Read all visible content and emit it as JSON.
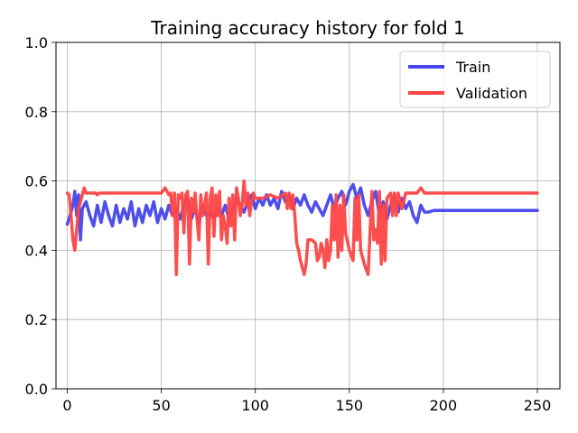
{
  "chart_data": {
    "type": "line",
    "title": "Training accuracy history for fold 1",
    "xlabel": "",
    "ylabel": "",
    "xlim": [
      -6,
      262
    ],
    "ylim": [
      0,
      1
    ],
    "xticks": [
      0,
      50,
      100,
      150,
      200,
      250
    ],
    "yticks": [
      0.0,
      0.2,
      0.4,
      0.6,
      0.8,
      1.0
    ],
    "xtick_labels": [
      "0",
      "50",
      "100",
      "150",
      "200",
      "250"
    ],
    "ytick_labels": [
      "0.0",
      "0.2",
      "0.4",
      "0.6",
      "0.8",
      "1.0"
    ],
    "grid": true,
    "legend_position": "upper right",
    "series": [
      {
        "name": "Train",
        "color": "#4444ee",
        "keypoints": [
          [
            0,
            0.475
          ],
          [
            2,
            0.51
          ],
          [
            3,
            0.53
          ],
          [
            4,
            0.57
          ],
          [
            5,
            0.5
          ],
          [
            6,
            0.56
          ],
          [
            7,
            0.43
          ],
          [
            8,
            0.52
          ],
          [
            10,
            0.54
          ],
          [
            12,
            0.5
          ],
          [
            14,
            0.47
          ],
          [
            16,
            0.53
          ],
          [
            18,
            0.48
          ],
          [
            20,
            0.54
          ],
          [
            22,
            0.5
          ],
          [
            24,
            0.47
          ],
          [
            26,
            0.53
          ],
          [
            28,
            0.48
          ],
          [
            30,
            0.52
          ],
          [
            32,
            0.49
          ],
          [
            34,
            0.54
          ],
          [
            36,
            0.47
          ],
          [
            38,
            0.52
          ],
          [
            40,
            0.48
          ],
          [
            42,
            0.53
          ],
          [
            44,
            0.5
          ],
          [
            46,
            0.54
          ],
          [
            48,
            0.48
          ],
          [
            50,
            0.52
          ],
          [
            52,
            0.49
          ],
          [
            54,
            0.53
          ],
          [
            56,
            0.5
          ],
          [
            58,
            0.52
          ],
          [
            60,
            0.49
          ],
          [
            62,
            0.53
          ],
          [
            64,
            0.55
          ],
          [
            66,
            0.49
          ],
          [
            68,
            0.52
          ],
          [
            70,
            0.48
          ],
          [
            72,
            0.53
          ],
          [
            74,
            0.5
          ],
          [
            76,
            0.51
          ],
          [
            78,
            0.49
          ],
          [
            80,
            0.52
          ],
          [
            82,
            0.5
          ],
          [
            84,
            0.53
          ],
          [
            86,
            0.49
          ],
          [
            88,
            0.52
          ],
          [
            90,
            0.55
          ],
          [
            92,
            0.53
          ],
          [
            94,
            0.51
          ],
          [
            96,
            0.54
          ],
          [
            98,
            0.56
          ],
          [
            100,
            0.52
          ],
          [
            102,
            0.55
          ],
          [
            104,
            0.53
          ],
          [
            106,
            0.56
          ],
          [
            108,
            0.53
          ],
          [
            110,
            0.55
          ],
          [
            112,
            0.52
          ],
          [
            114,
            0.57
          ],
          [
            116,
            0.54
          ],
          [
            118,
            0.56
          ],
          [
            120,
            0.52
          ],
          [
            122,
            0.55
          ],
          [
            124,
            0.53
          ],
          [
            126,
            0.56
          ],
          [
            128,
            0.53
          ],
          [
            130,
            0.51
          ],
          [
            132,
            0.54
          ],
          [
            134,
            0.52
          ],
          [
            136,
            0.5
          ],
          [
            138,
            0.53
          ],
          [
            140,
            0.56
          ],
          [
            142,
            0.52
          ],
          [
            144,
            0.55
          ],
          [
            146,
            0.57
          ],
          [
            148,
            0.53
          ],
          [
            150,
            0.57
          ],
          [
            152,
            0.59
          ],
          [
            154,
            0.55
          ],
          [
            156,
            0.58
          ],
          [
            158,
            0.53
          ],
          [
            160,
            0.5
          ],
          [
            162,
            0.54
          ],
          [
            164,
            0.57
          ],
          [
            166,
            0.5
          ],
          [
            168,
            0.54
          ],
          [
            170,
            0.49
          ],
          [
            172,
            0.53
          ],
          [
            174,
            0.56
          ],
          [
            176,
            0.51
          ],
          [
            178,
            0.55
          ],
          [
            180,
            0.52
          ],
          [
            182,
            0.54
          ],
          [
            184,
            0.5
          ],
          [
            186,
            0.48
          ],
          [
            188,
            0.53
          ],
          [
            190,
            0.51
          ],
          [
            192,
            0.51
          ],
          [
            195,
            0.515
          ],
          [
            250,
            0.515
          ]
        ]
      },
      {
        "name": "Validation",
        "color": "#ff4444",
        "keypoints": [
          [
            0,
            0.565
          ],
          [
            1,
            0.56
          ],
          [
            2,
            0.5
          ],
          [
            3,
            0.43
          ],
          [
            4,
            0.4
          ],
          [
            6,
            0.52
          ],
          [
            8,
            0.56
          ],
          [
            9,
            0.58
          ],
          [
            10,
            0.565
          ],
          [
            15,
            0.565
          ],
          [
            16,
            0.56
          ],
          [
            17,
            0.565
          ],
          [
            50,
            0.565
          ],
          [
            52,
            0.58
          ],
          [
            54,
            0.56
          ],
          [
            55,
            0.565
          ],
          [
            56,
            0.5
          ],
          [
            57,
            0.565
          ],
          [
            58,
            0.33
          ],
          [
            59,
            0.56
          ],
          [
            60,
            0.55
          ],
          [
            61,
            0.565
          ],
          [
            62,
            0.45
          ],
          [
            63,
            0.56
          ],
          [
            64,
            0.57
          ],
          [
            65,
            0.36
          ],
          [
            66,
            0.55
          ],
          [
            67,
            0.51
          ],
          [
            68,
            0.565
          ],
          [
            69,
            0.49
          ],
          [
            70,
            0.43
          ],
          [
            71,
            0.56
          ],
          [
            72,
            0.5
          ],
          [
            73,
            0.53
          ],
          [
            74,
            0.565
          ],
          [
            75,
            0.36
          ],
          [
            76,
            0.55
          ],
          [
            77,
            0.58
          ],
          [
            78,
            0.44
          ],
          [
            79,
            0.56
          ],
          [
            80,
            0.5
          ],
          [
            81,
            0.57
          ],
          [
            82,
            0.43
          ],
          [
            83,
            0.5
          ],
          [
            84,
            0.47
          ],
          [
            85,
            0.42
          ],
          [
            86,
            0.55
          ],
          [
            87,
            0.47
          ],
          [
            88,
            0.56
          ],
          [
            89,
            0.43
          ],
          [
            90,
            0.58
          ],
          [
            91,
            0.55
          ],
          [
            92,
            0.5
          ],
          [
            93,
            0.53
          ],
          [
            94,
            0.6
          ],
          [
            95,
            0.53
          ],
          [
            96,
            0.565
          ],
          [
            97,
            0.5
          ],
          [
            98,
            0.54
          ],
          [
            99,
            0.565
          ],
          [
            100,
            0.55
          ],
          [
            104,
            0.55
          ],
          [
            108,
            0.56
          ],
          [
            112,
            0.55
          ],
          [
            116,
            0.565
          ],
          [
            117,
            0.52
          ],
          [
            118,
            0.565
          ],
          [
            119,
            0.52
          ],
          [
            120,
            0.56
          ],
          [
            121,
            0.5
          ],
          [
            122,
            0.42
          ],
          [
            123,
            0.4
          ],
          [
            124,
            0.37
          ],
          [
            126,
            0.33
          ],
          [
            127,
            0.36
          ],
          [
            128,
            0.43
          ],
          [
            130,
            0.43
          ],
          [
            132,
            0.42
          ],
          [
            133,
            0.37
          ],
          [
            134,
            0.38
          ],
          [
            135,
            0.42
          ],
          [
            136,
            0.4
          ],
          [
            137,
            0.35
          ],
          [
            138,
            0.43
          ],
          [
            139,
            0.37
          ],
          [
            140,
            0.4
          ],
          [
            141,
            0.53
          ],
          [
            142,
            0.43
          ],
          [
            143,
            0.56
          ],
          [
            144,
            0.38
          ],
          [
            145,
            0.53
          ],
          [
            146,
            0.4
          ],
          [
            147,
            0.56
          ],
          [
            148,
            0.45
          ],
          [
            150,
            0.4
          ],
          [
            152,
            0.37
          ],
          [
            153,
            0.55
          ],
          [
            154,
            0.43
          ],
          [
            155,
            0.56
          ],
          [
            156,
            0.4
          ],
          [
            158,
            0.36
          ],
          [
            160,
            0.33
          ],
          [
            161,
            0.45
          ],
          [
            162,
            0.57
          ],
          [
            163,
            0.43
          ],
          [
            164,
            0.46
          ],
          [
            165,
            0.42
          ],
          [
            166,
            0.57
          ],
          [
            167,
            0.36
          ],
          [
            168,
            0.53
          ],
          [
            169,
            0.37
          ],
          [
            170,
            0.55
          ],
          [
            172,
            0.565
          ],
          [
            173,
            0.5
          ],
          [
            174,
            0.565
          ],
          [
            175,
            0.5
          ],
          [
            176,
            0.565
          ],
          [
            178,
            0.52
          ],
          [
            180,
            0.565
          ],
          [
            186,
            0.565
          ],
          [
            188,
            0.58
          ],
          [
            190,
            0.565
          ],
          [
            250,
            0.565
          ]
        ]
      }
    ]
  }
}
